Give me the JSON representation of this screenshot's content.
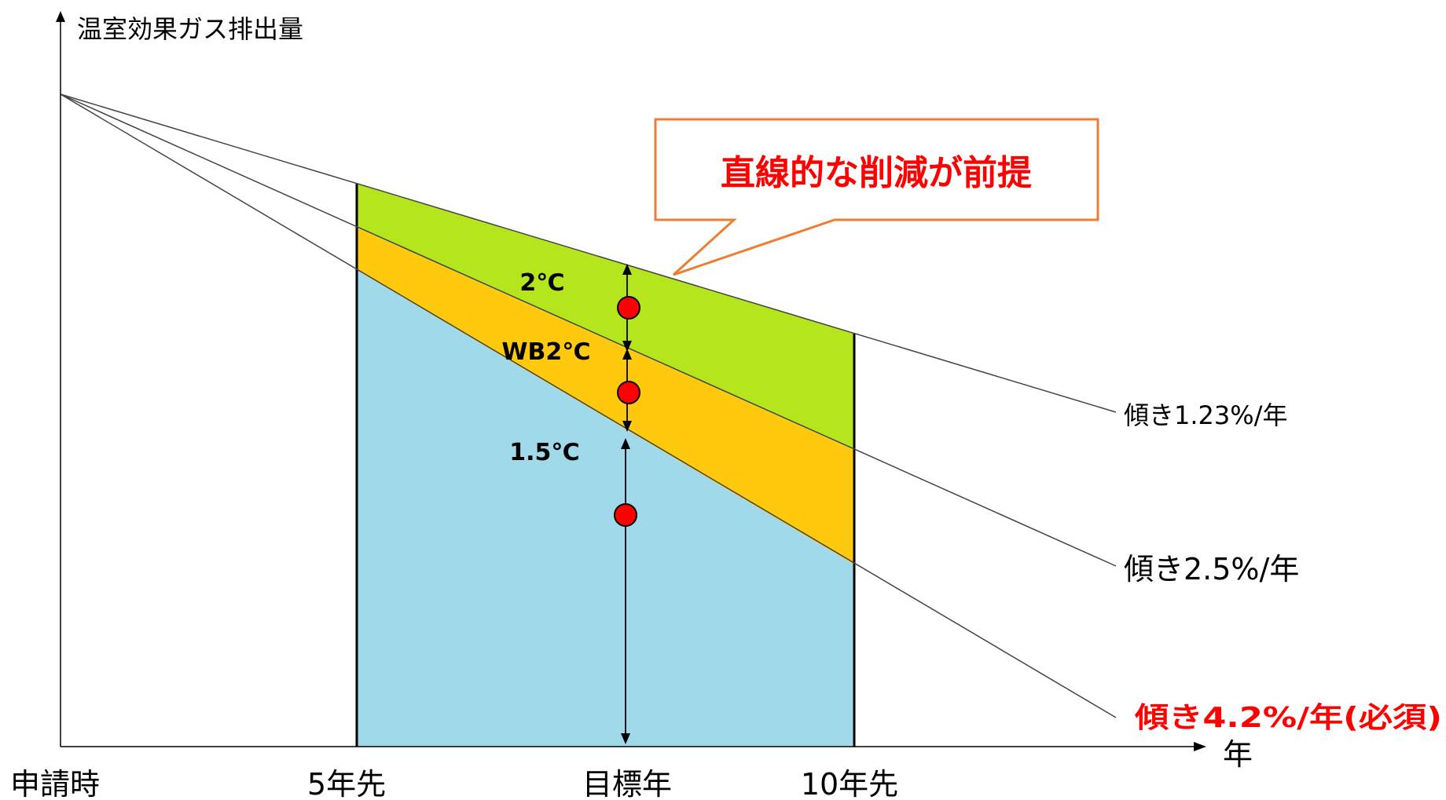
{
  "axis": {
    "y_label": "温室効果ガス排出量",
    "x_label": "年"
  },
  "x_ticks": [
    {
      "id": "start",
      "label": "申請時"
    },
    {
      "id": "5y",
      "label": "5年先"
    },
    {
      "id": "target",
      "label": "目標年"
    },
    {
      "id": "10y",
      "label": "10年先"
    }
  ],
  "lines": [
    {
      "id": "slope-123",
      "label": "傾き1.23%/年"
    },
    {
      "id": "slope-25",
      "label": "傾き2.5%/年"
    },
    {
      "id": "slope-42",
      "label": "傾き4.2%/年(必須)"
    }
  ],
  "bands": [
    {
      "id": "2c",
      "label": "2℃",
      "color": "#b5e61d"
    },
    {
      "id": "wb2c",
      "label": "WB2℃",
      "color": "#ffc90e"
    },
    {
      "id": "1-5c",
      "label": "1.5℃",
      "color": "#9fd9ea"
    }
  ],
  "callout": {
    "text": "直線的な削減が前提",
    "border_color": "#ed7d31",
    "text_color": "#ff0000"
  },
  "colors": {
    "required_label": "#ff0000",
    "marker": "#ff0000"
  }
}
